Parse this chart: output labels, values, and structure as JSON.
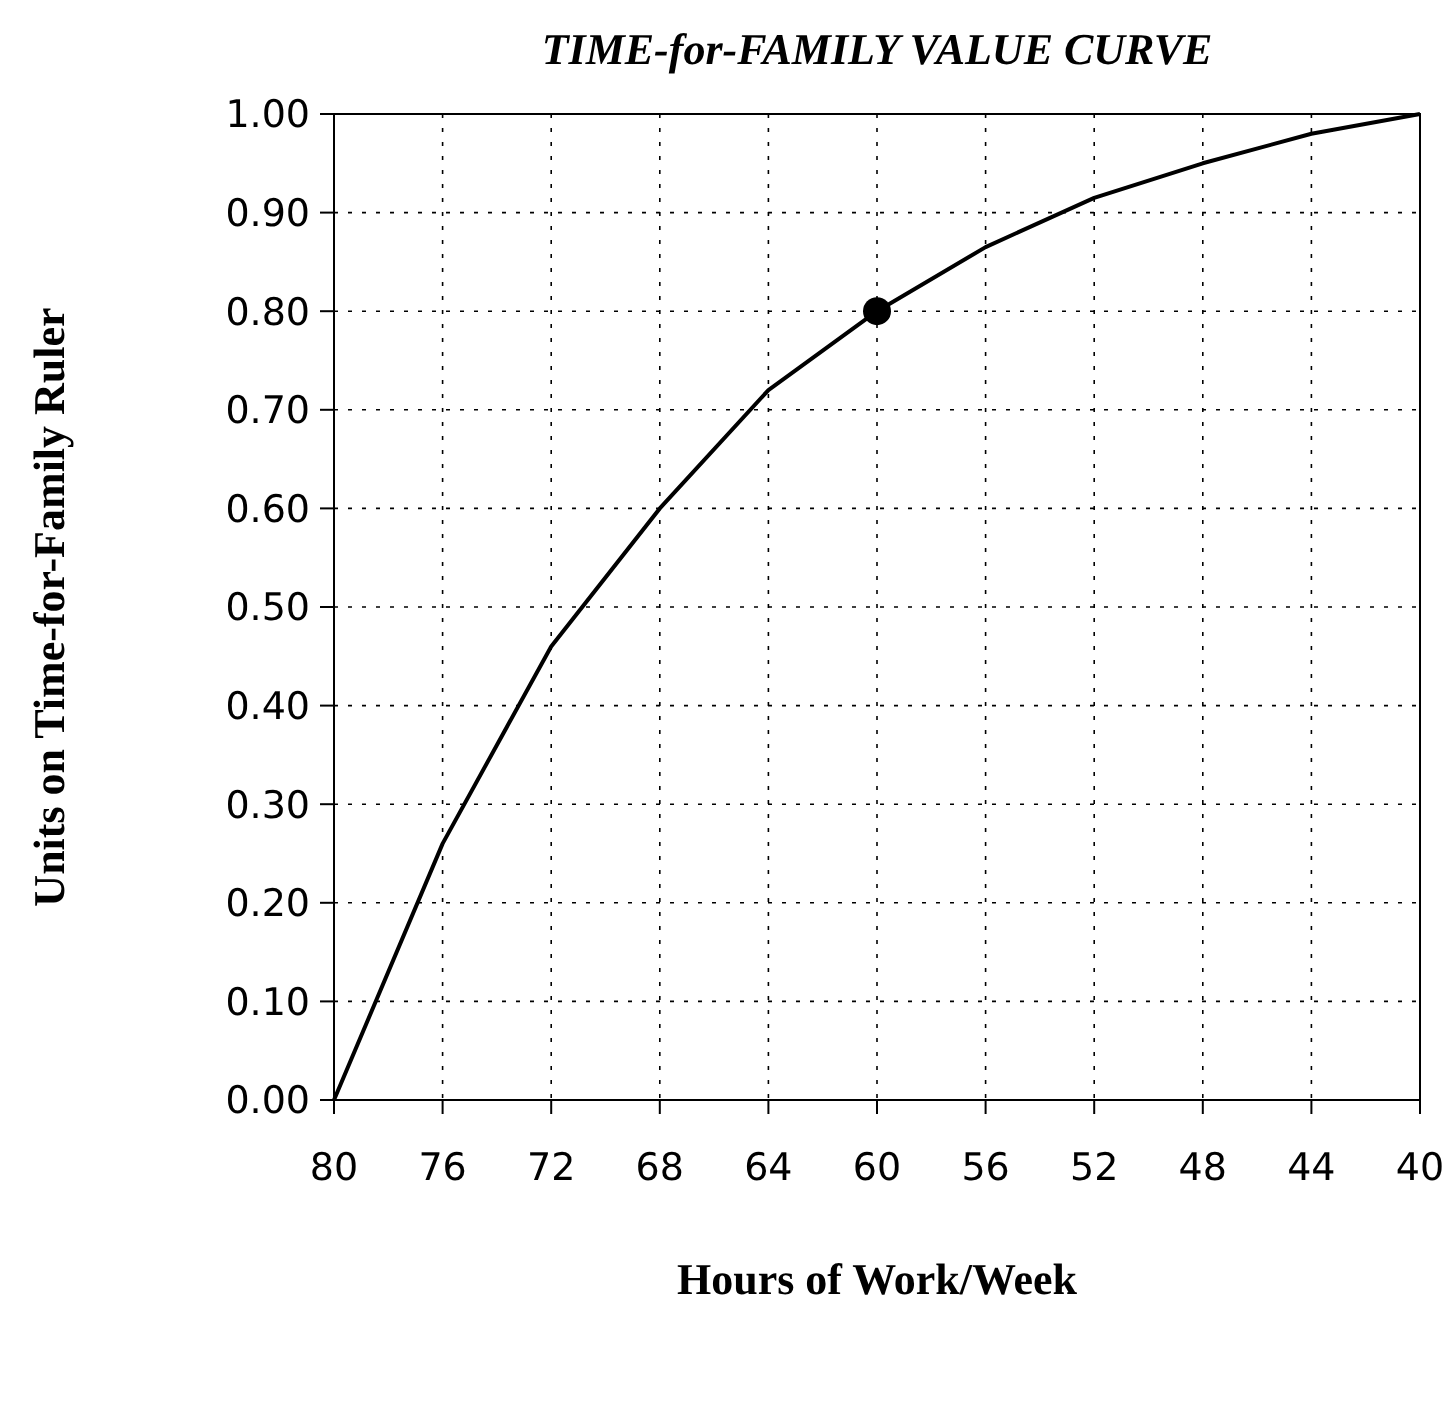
{
  "chart_data": {
    "type": "line",
    "title": "TIME-for-FAMILY VALUE CURVE",
    "xlabel": "Hours of Work/Week",
    "ylabel": "Units on Time-for-Family Ruler",
    "series": [
      {
        "color": "#000000",
        "marker": "none",
        "x": [
          80,
          76,
          72,
          68,
          64,
          60,
          56,
          52,
          48,
          44,
          40
        ],
        "values": [
          0,
          0.26,
          0.46,
          0.6,
          0.72,
          0.8,
          0.865,
          0.915,
          0.95,
          0.98,
          1.0
        ]
      },
      {
        "type": "scatter",
        "color": "#000000",
        "marker": "circle",
        "x": [
          60
        ],
        "values": [
          0.8
        ]
      }
    ],
    "xlim": [
      80,
      40
    ],
    "xticks": [
      80,
      76,
      72,
      68,
      64,
      60,
      56,
      52,
      48,
      44,
      40
    ],
    "ylim": [
      0,
      1
    ],
    "yticks": [
      {
        "value": 0,
        "label": "0.00"
      },
      {
        "value": 0.1,
        "label": "0.10"
      },
      {
        "value": 0.2,
        "label": "0.20"
      },
      {
        "value": 0.3,
        "label": "0.30"
      },
      {
        "value": 0.4,
        "label": "0.40"
      },
      {
        "value": 0.5,
        "label": "0.50"
      },
      {
        "value": 0.6,
        "label": "0.60"
      },
      {
        "value": 0.7,
        "label": "0.70"
      },
      {
        "value": 0.8,
        "label": "0.80"
      },
      {
        "value": 0.9,
        "label": "0.90"
      },
      {
        "value": 1,
        "label": "1.00"
      }
    ],
    "grid": true
  }
}
